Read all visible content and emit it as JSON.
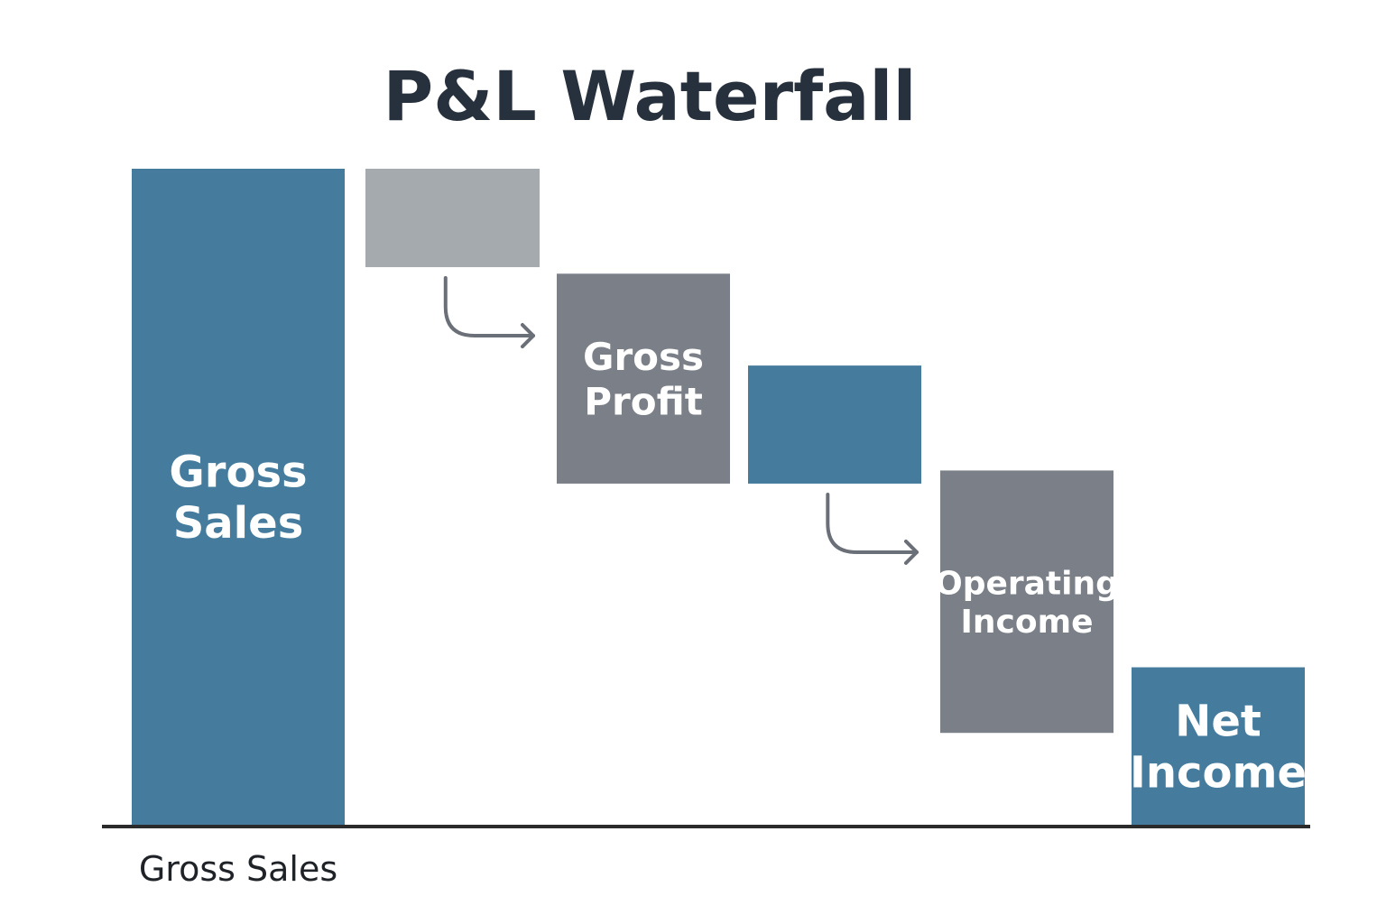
{
  "chart_data": {
    "type": "bar",
    "subtype": "waterfall",
    "title": "P&L Waterfall",
    "xlabel": "",
    "ylabel": "",
    "grid": false,
    "legend": "none",
    "ylim": [
      0,
      100
    ],
    "categories": [
      "Gross Sales",
      "",
      "Gross Profit",
      "",
      "Operating Income",
      "Net Income"
    ],
    "x_tick_labels": [
      "Gross Sales"
    ],
    "bars": [
      {
        "label": "Gross Sales",
        "base": 0,
        "top": 100,
        "kind": "total"
      },
      {
        "label": "",
        "base": 85,
        "top": 100,
        "kind": "decrease"
      },
      {
        "label": "Gross Profit",
        "base": 52,
        "top": 84,
        "kind": "subtotal"
      },
      {
        "label": "",
        "base": 52,
        "top": 70,
        "kind": "decrease"
      },
      {
        "label": "Operating Income",
        "base": 14,
        "top": 54,
        "kind": "subtotal"
      },
      {
        "label": "Net Income",
        "base": 0,
        "top": 24,
        "kind": "total"
      }
    ],
    "colors": {
      "total": "#457b9d",
      "decrease": "#a5aaaf",
      "subtotal": "#7b8088",
      "decrease_alt": "#457b9d",
      "connector": "#6b7078",
      "axis": "#2b2b2b",
      "title": "#27313d"
    },
    "connectors": [
      {
        "from_bar": 1,
        "to_bar": 2
      },
      {
        "from_bar": 3,
        "to_bar": 4
      }
    ]
  }
}
